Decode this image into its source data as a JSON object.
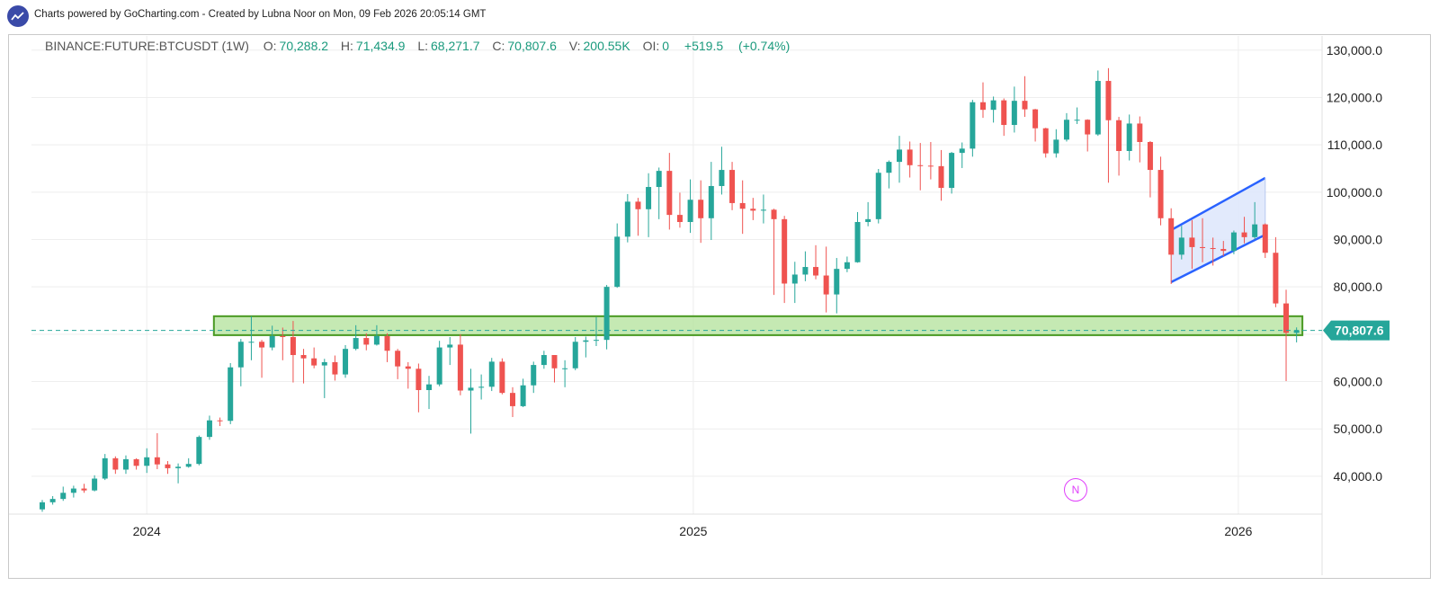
{
  "header": {
    "credit_text": "Charts powered by GoCharting.com - Created by Lubna Noor on Mon, 09 Feb 2026 20:05:14 GMT",
    "logo_icon": "chart-line-icon"
  },
  "legend": {
    "symbol": "BINANCE:FUTURE:BTCUSDT (1W)",
    "open_label": "O:",
    "open": "70,288.2",
    "high_label": "H:",
    "high": "71,434.9",
    "low_label": "L:",
    "low": "68,271.7",
    "close_label": "C:",
    "close": "70,807.6",
    "volume_label": "V:",
    "volume": "200.55K",
    "oi_label": "OI:",
    "oi": "0",
    "change": "+519.5",
    "change_pct": "(+0.74%)"
  },
  "watermark": {
    "letter": "N"
  },
  "colors": {
    "up": "#26a69a",
    "down": "#ef5350",
    "grid": "#eeeeee",
    "support_fill": "#b7e4a0",
    "support_border": "#4a9a23",
    "channel": "#2962ff",
    "channel_fill": "#dde6fb",
    "price_line": "#26a69a"
  },
  "chart_data": {
    "type": "candlestick",
    "timeframe": "1W",
    "x_ticks": [
      "2024",
      "2025",
      "2026"
    ],
    "y_ticks": [
      "40,000.0",
      "50,000.0",
      "60,000.0",
      "70,000.0",
      "80,000.0",
      "90,000.0",
      "100,000.0",
      "110,000.0",
      "120,000.0",
      "130,000.0"
    ],
    "y_tick_values": [
      40000,
      50000,
      60000,
      70000,
      80000,
      90000,
      100000,
      110000,
      120000,
      130000
    ],
    "ylim": [
      32000,
      133000
    ],
    "last_price": 70807.6,
    "last_price_label": "70,807.6",
    "support_zone": {
      "from": "2024-03-04",
      "to": "2026-03-09",
      "low": 69800,
      "high": 73800
    },
    "channel": {
      "upper": [
        [
          "2025-11-17",
          92000
        ],
        [
          "2026-01-19",
          103000
        ]
      ],
      "lower": [
        [
          "2025-11-17",
          81000
        ],
        [
          "2026-01-19",
          91000
        ]
      ]
    },
    "candles": [
      [
        "2023-10-23",
        33000,
        35000,
        32500,
        34500
      ],
      [
        "2023-10-30",
        34500,
        35800,
        34000,
        35200
      ],
      [
        "2023-11-06",
        35200,
        37800,
        34800,
        36500
      ],
      [
        "2023-11-13",
        36500,
        38000,
        35500,
        37400
      ],
      [
        "2023-11-20",
        37400,
        38400,
        36500,
        37000
      ],
      [
        "2023-11-27",
        37000,
        40200,
        36800,
        39500
      ],
      [
        "2023-12-04",
        39500,
        44700,
        39200,
        43800
      ],
      [
        "2023-12-11",
        43800,
        44200,
        40500,
        41400
      ],
      [
        "2023-12-18",
        41400,
        44400,
        40500,
        43600
      ],
      [
        "2023-12-25",
        43600,
        43800,
        41400,
        42200
      ],
      [
        "2024-01-01",
        42200,
        45900,
        40700,
        44000
      ],
      [
        "2024-01-08",
        44000,
        49100,
        41500,
        42500
      ],
      [
        "2024-01-15",
        42500,
        43200,
        40500,
        41700
      ],
      [
        "2024-01-22",
        41700,
        42700,
        38500,
        42000
      ],
      [
        "2024-01-29",
        42000,
        43800,
        41800,
        42600
      ],
      [
        "2024-02-05",
        42600,
        48600,
        42300,
        48300
      ],
      [
        "2024-02-12",
        48300,
        52800,
        47700,
        51800
      ],
      [
        "2024-02-19",
        51800,
        52400,
        50600,
        51700
      ],
      [
        "2024-02-26",
        51700,
        63900,
        51000,
        63000
      ],
      [
        "2024-03-04",
        63000,
        69000,
        59000,
        68400
      ],
      [
        "2024-03-11",
        68400,
        73800,
        64500,
        68400
      ],
      [
        "2024-03-18",
        68400,
        68800,
        60800,
        67200
      ],
      [
        "2024-03-25",
        67200,
        71800,
        66600,
        69600
      ],
      [
        "2024-04-01",
        69600,
        71400,
        64500,
        69400
      ],
      [
        "2024-04-08",
        69400,
        72800,
        59800,
        65600
      ],
      [
        "2024-04-15",
        65600,
        66900,
        59600,
        64900
      ],
      [
        "2024-04-22",
        64900,
        67200,
        62800,
        63400
      ],
      [
        "2024-04-29",
        63400,
        64800,
        56500,
        64100
      ],
      [
        "2024-05-06",
        64100,
        65500,
        60200,
        61500
      ],
      [
        "2024-05-13",
        61500,
        67700,
        60800,
        66900
      ],
      [
        "2024-05-20",
        66900,
        71900,
        66600,
        69200
      ],
      [
        "2024-05-27",
        69200,
        70200,
        66600,
        67800
      ],
      [
        "2024-06-03",
        67800,
        71900,
        67600,
        69600
      ],
      [
        "2024-06-10",
        69600,
        70200,
        64100,
        66500
      ],
      [
        "2024-06-17",
        66500,
        66900,
        60500,
        63200
      ],
      [
        "2024-06-24",
        63200,
        64100,
        58500,
        62700
      ],
      [
        "2024-07-01",
        62700,
        63800,
        53500,
        58200
      ],
      [
        "2024-07-08",
        58200,
        61200,
        54200,
        59400
      ],
      [
        "2024-07-15",
        59400,
        68600,
        59000,
        67200
      ],
      [
        "2024-07-22",
        67200,
        69400,
        63500,
        67800
      ],
      [
        "2024-07-29",
        67800,
        70000,
        57100,
        58100
      ],
      [
        "2024-08-05",
        58100,
        62700,
        49000,
        58700
      ],
      [
        "2024-08-12",
        58700,
        61500,
        56200,
        58900
      ],
      [
        "2024-08-19",
        58900,
        65000,
        58000,
        64200
      ],
      [
        "2024-08-26",
        64200,
        64900,
        57300,
        57600
      ],
      [
        "2024-09-02",
        57600,
        58800,
        52500,
        54800
      ],
      [
        "2024-09-09",
        54800,
        60600,
        54600,
        59200
      ],
      [
        "2024-09-16",
        59200,
        64200,
        57600,
        63500
      ],
      [
        "2024-09-23",
        63500,
        66500,
        62700,
        65600
      ],
      [
        "2024-09-30",
        65600,
        65600,
        59800,
        62800
      ],
      [
        "2024-10-07",
        62800,
        64500,
        58800,
        62800
      ],
      [
        "2024-10-14",
        62800,
        69400,
        62400,
        68400
      ],
      [
        "2024-10-21",
        68400,
        69500,
        65100,
        68700
      ],
      [
        "2024-10-28",
        68700,
        73600,
        67500,
        68800
      ],
      [
        "2024-11-04",
        68800,
        80400,
        66800,
        80000
      ],
      [
        "2024-11-11",
        80000,
        93400,
        79800,
        90600
      ],
      [
        "2024-11-18",
        90600,
        99600,
        89400,
        98000
      ],
      [
        "2024-11-25",
        98000,
        98800,
        90800,
        96400
      ],
      [
        "2024-12-02",
        96400,
        104000,
        90500,
        101100
      ],
      [
        "2024-12-09",
        101100,
        105200,
        94300,
        104500
      ],
      [
        "2024-12-16",
        104500,
        108300,
        92100,
        95200
      ],
      [
        "2024-12-23",
        95200,
        99900,
        92500,
        93700
      ],
      [
        "2024-12-30",
        93700,
        102700,
        91400,
        98400
      ],
      [
        "2025-01-06",
        98400,
        102500,
        89300,
        94500
      ],
      [
        "2025-01-13",
        94500,
        106400,
        89900,
        101300
      ],
      [
        "2025-01-20",
        101300,
        109600,
        99500,
        104700
      ],
      [
        "2025-01-27",
        104700,
        106400,
        96200,
        97700
      ],
      [
        "2025-02-03",
        97700,
        102500,
        91200,
        96500
      ],
      [
        "2025-02-10",
        96500,
        98800,
        94100,
        96100
      ],
      [
        "2025-02-17",
        96100,
        99500,
        93400,
        96300
      ],
      [
        "2025-02-24",
        96300,
        96500,
        78300,
        94300
      ],
      [
        "2025-03-03",
        94300,
        95000,
        76600,
        80700
      ],
      [
        "2025-03-10",
        80700,
        85300,
        76600,
        82600
      ],
      [
        "2025-03-17",
        82600,
        87500,
        81200,
        84200
      ],
      [
        "2025-03-24",
        84200,
        88800,
        81600,
        82400
      ],
      [
        "2025-03-31",
        82400,
        88500,
        74600,
        78400
      ],
      [
        "2025-04-07",
        78400,
        86100,
        74400,
        83800
      ],
      [
        "2025-04-14",
        83800,
        86400,
        83100,
        85200
      ],
      [
        "2025-04-21",
        85200,
        95800,
        85100,
        93700
      ],
      [
        "2025-04-28",
        93700,
        97900,
        92800,
        94300
      ],
      [
        "2025-05-05",
        94300,
        104900,
        93400,
        104100
      ],
      [
        "2025-05-12",
        104100,
        106700,
        100800,
        106400
      ],
      [
        "2025-05-19",
        106400,
        111900,
        102000,
        109000
      ],
      [
        "2025-05-26",
        109000,
        110700,
        103100,
        105700
      ],
      [
        "2025-06-02",
        105700,
        110400,
        100400,
        105600
      ],
      [
        "2025-06-09",
        105600,
        110600,
        102700,
        105500
      ],
      [
        "2025-06-16",
        105500,
        108900,
        98200,
        100900
      ],
      [
        "2025-06-23",
        100900,
        108500,
        99700,
        108300
      ],
      [
        "2025-06-30",
        108300,
        110500,
        105100,
        109200
      ],
      [
        "2025-07-07",
        109200,
        119500,
        107500,
        119000
      ],
      [
        "2025-07-14",
        119000,
        123200,
        115700,
        117400
      ],
      [
        "2025-07-21",
        117400,
        120200,
        114700,
        119400
      ],
      [
        "2025-07-28",
        119400,
        119800,
        111900,
        114200
      ],
      [
        "2025-08-04",
        114200,
        122300,
        112600,
        119300
      ],
      [
        "2025-08-11",
        119300,
        124500,
        115900,
        117500
      ],
      [
        "2025-08-18",
        117500,
        117600,
        110700,
        113500
      ],
      [
        "2025-08-25",
        113500,
        113600,
        107300,
        108200
      ],
      [
        "2025-09-01",
        108200,
        113300,
        107300,
        111100
      ],
      [
        "2025-09-08",
        111100,
        116700,
        110700,
        115300
      ],
      [
        "2025-09-15",
        115300,
        117900,
        114400,
        115300
      ],
      [
        "2025-09-22",
        115300,
        115400,
        108600,
        112200
      ],
      [
        "2025-09-29",
        112200,
        125700,
        111900,
        123500
      ],
      [
        "2025-10-06",
        123500,
        126200,
        102000,
        115200
      ],
      [
        "2025-10-13",
        115200,
        115900,
        103500,
        108700
      ],
      [
        "2025-10-20",
        108700,
        116400,
        106700,
        114500
      ],
      [
        "2025-10-27",
        114500,
        116000,
        106300,
        110600
      ],
      [
        "2025-11-03",
        110600,
        110800,
        98900,
        104700
      ],
      [
        "2025-11-10",
        104700,
        107500,
        93000,
        94500
      ],
      [
        "2025-11-17",
        94500,
        96600,
        80600,
        86800
      ],
      [
        "2025-11-24",
        86800,
        92900,
        85800,
        90400
      ],
      [
        "2025-12-01",
        90400,
        94100,
        83800,
        88400
      ],
      [
        "2025-12-08",
        88400,
        94500,
        85200,
        88200
      ],
      [
        "2025-12-15",
        88200,
        90400,
        84500,
        88000
      ],
      [
        "2025-12-22",
        88000,
        89700,
        86500,
        87600
      ],
      [
        "2025-12-29",
        87600,
        91900,
        86900,
        91500
      ],
      [
        "2026-01-05",
        91500,
        94800,
        89200,
        90500
      ],
      [
        "2026-01-12",
        90500,
        97900,
        90000,
        93200
      ],
      [
        "2026-01-19",
        93200,
        93400,
        86100,
        87200
      ],
      [
        "2026-01-26",
        87200,
        90500,
        75700,
        76500
      ],
      [
        "2026-02-02",
        76500,
        79400,
        60100,
        70288
      ],
      [
        "2026-02-09",
        70288.2,
        71434.9,
        68271.7,
        70807.6
      ]
    ]
  }
}
